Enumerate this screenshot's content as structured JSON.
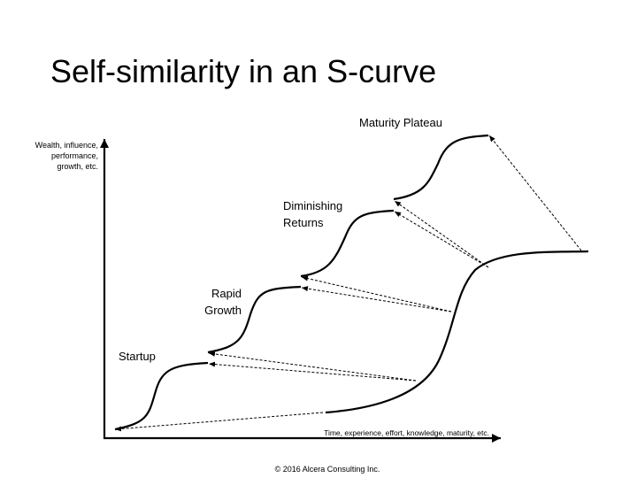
{
  "title": "Self-similarity in an S-curve",
  "y_axis_label": [
    "Wealth, influence,",
    "performance,",
    "growth, etc."
  ],
  "x_axis_label": "Time, experience, effort, knowledge, maturity, etc.",
  "stages": [
    {
      "label": [
        "Startup"
      ]
    },
    {
      "label": [
        "Rapid",
        "Growth"
      ]
    },
    {
      "label": [
        "Diminishing",
        "Returns"
      ]
    },
    {
      "label": [
        "Maturity Plateau"
      ]
    }
  ],
  "footer": "© 2016 Alcera Consulting Inc."
}
